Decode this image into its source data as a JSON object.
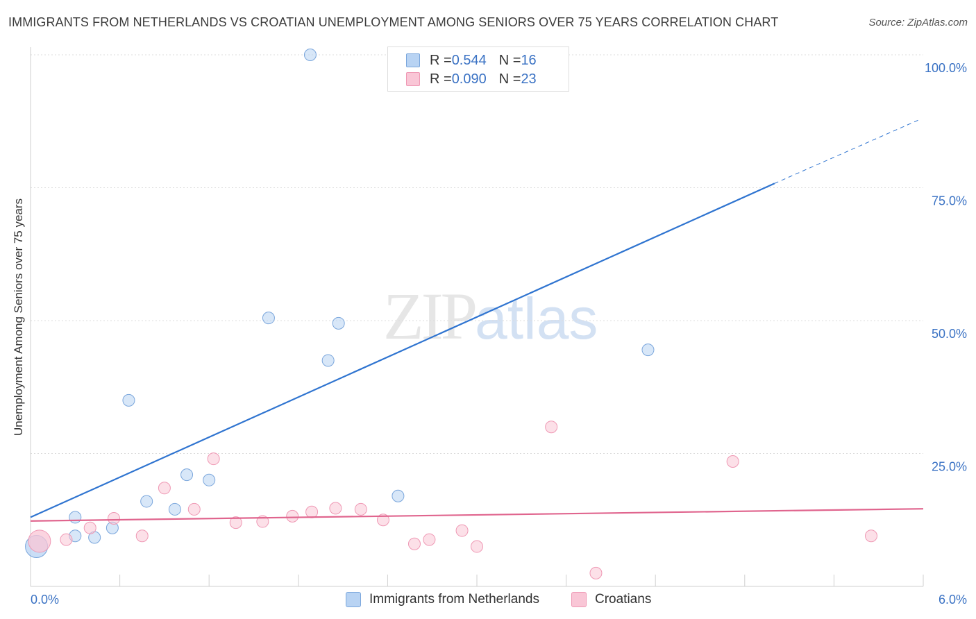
{
  "title": "IMMIGRANTS FROM NETHERLANDS VS CROATIAN UNEMPLOYMENT AMONG SENIORS OVER 75 YEARS CORRELATION CHART",
  "source": "Source: ZipAtlas.com",
  "watermark": {
    "zip": "ZIP",
    "atlas": "atlas"
  },
  "legend_top": [
    {
      "r_label": "R = ",
      "r_value": "0.544",
      "n_label": "N = ",
      "n_value": "16"
    },
    {
      "r_label": "R = ",
      "r_value": "0.090",
      "n_label": "N = ",
      "n_value": "23"
    }
  ],
  "colors": {
    "blue_fill": "#b8d3f3",
    "blue_stroke": "#7aa6dc",
    "blue_line": "#2f74d0",
    "pink_fill": "#f9c6d6",
    "pink_stroke": "#ef98b4",
    "pink_line": "#e0658e",
    "tick_blue": "#3a72c4",
    "grid": "#dcdcdc"
  },
  "chart_data": {
    "type": "scatter",
    "title": "IMMIGRANTS FROM NETHERLANDS VS CROATIAN UNEMPLOYMENT AMONG SENIORS OVER 75 YEARS CORRELATION CHART",
    "xlabel": "",
    "ylabel": "Unemployment Among Seniors over 75 years",
    "xlim": [
      0,
      6
    ],
    "ylim": [
      0,
      100
    ],
    "x_tick_labels": [
      "0.0%",
      "6.0%"
    ],
    "y_ticks": [
      25,
      50,
      75,
      100
    ],
    "y_tick_labels": [
      "25.0%",
      "50.0%",
      "75.0%",
      "100.0%"
    ],
    "grid": true,
    "series": [
      {
        "name": "Immigrants from Netherlands",
        "color": "blue",
        "r": 0.544,
        "n": 16,
        "points": [
          {
            "x": 0.04,
            "y": 7.5,
            "big": true
          },
          {
            "x": 0.3,
            "y": 9.5
          },
          {
            "x": 0.3,
            "y": 13
          },
          {
            "x": 0.43,
            "y": 9.2
          },
          {
            "x": 0.55,
            "y": 11
          },
          {
            "x": 0.66,
            "y": 35
          },
          {
            "x": 0.78,
            "y": 16
          },
          {
            "x": 0.97,
            "y": 14.5
          },
          {
            "x": 1.05,
            "y": 21
          },
          {
            "x": 1.2,
            "y": 20
          },
          {
            "x": 1.6,
            "y": 50.5
          },
          {
            "x": 1.88,
            "y": 100
          },
          {
            "x": 2.0,
            "y": 42.5
          },
          {
            "x": 2.07,
            "y": 49.5
          },
          {
            "x": 2.47,
            "y": 17
          },
          {
            "x": 4.15,
            "y": 44.5
          }
        ],
        "trend": {
          "x0": 0.0,
          "y0": 13.0,
          "x1": 5.0,
          "y1": 75.8,
          "dash_to_x": 6.0,
          "dash_to_y": 88.3
        }
      },
      {
        "name": "Croatians",
        "color": "pink",
        "r": 0.09,
        "n": 23,
        "points": [
          {
            "x": 0.06,
            "y": 8.5,
            "big": true
          },
          {
            "x": 0.24,
            "y": 8.8
          },
          {
            "x": 0.4,
            "y": 11
          },
          {
            "x": 0.56,
            "y": 12.8
          },
          {
            "x": 0.75,
            "y": 9.5
          },
          {
            "x": 0.9,
            "y": 18.5
          },
          {
            "x": 1.1,
            "y": 14.5
          },
          {
            "x": 1.23,
            "y": 24
          },
          {
            "x": 1.38,
            "y": 12
          },
          {
            "x": 1.56,
            "y": 12.2
          },
          {
            "x": 1.76,
            "y": 13.2
          },
          {
            "x": 1.89,
            "y": 14
          },
          {
            "x": 2.05,
            "y": 14.7
          },
          {
            "x": 2.22,
            "y": 14.5
          },
          {
            "x": 2.37,
            "y": 12.5
          },
          {
            "x": 2.58,
            "y": 8
          },
          {
            "x": 2.68,
            "y": 8.8
          },
          {
            "x": 2.9,
            "y": 10.5
          },
          {
            "x": 3.0,
            "y": 7.5
          },
          {
            "x": 3.5,
            "y": 30
          },
          {
            "x": 3.8,
            "y": 2.5
          },
          {
            "x": 4.72,
            "y": 23.5
          },
          {
            "x": 5.65,
            "y": 9.5
          }
        ],
        "trend": {
          "x0": 0.0,
          "y0": 12.3,
          "x1": 6.0,
          "y1": 14.6
        }
      }
    ]
  },
  "bottom_legend": [
    "Immigrants from Netherlands",
    "Croatians"
  ]
}
